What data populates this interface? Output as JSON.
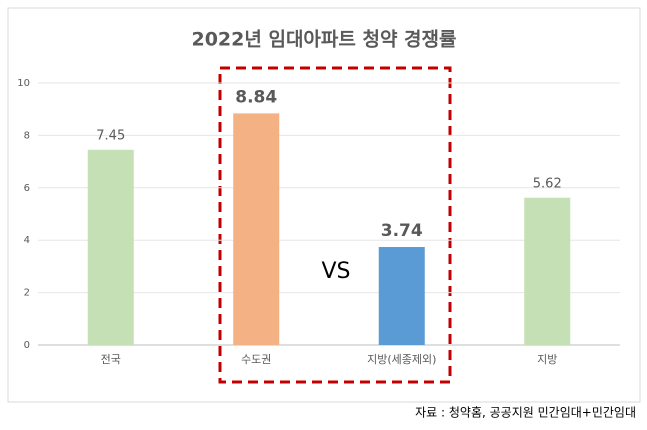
{
  "chart_data": {
    "type": "bar",
    "title": "2022년 임대아파트 청약 경쟁률",
    "categories": [
      "전국",
      "수도권",
      "지방(세종제외)",
      "지방"
    ],
    "values": [
      7.45,
      8.84,
      3.74,
      5.62
    ],
    "colors": [
      "#c5e0b4",
      "#f4b183",
      "#5b9bd5",
      "#c5e0b4"
    ],
    "ylim": [
      0,
      10
    ],
    "yticks": [
      0,
      2,
      4,
      6,
      8,
      10
    ],
    "grid": true,
    "annotation": "VS",
    "source": "자료 : 청약홈, 공공지원 민간임대+민간임대"
  }
}
